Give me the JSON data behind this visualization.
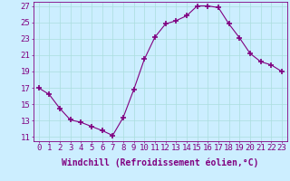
{
  "x": [
    0,
    1,
    2,
    3,
    4,
    5,
    6,
    7,
    8,
    9,
    10,
    11,
    12,
    13,
    14,
    15,
    16,
    17,
    18,
    19,
    20,
    21,
    22,
    23
  ],
  "y": [
    17,
    16.2,
    14.5,
    13.1,
    12.8,
    12.3,
    11.8,
    11.2,
    13.4,
    16.8,
    20.5,
    23.2,
    24.8,
    25.2,
    25.8,
    27.0,
    27.0,
    26.8,
    24.8,
    23.1,
    21.2,
    20.2,
    19.8,
    19.0
  ],
  "line_color": "#800080",
  "marker": "+",
  "marker_size": 5,
  "marker_lw": 1.2,
  "bg_color": "#cceeff",
  "grid_color": "#aadddd",
  "xlabel": "Windchill (Refroidissement éolien,°C)",
  "xlim": [
    -0.5,
    23.5
  ],
  "ylim": [
    10.5,
    27.5
  ],
  "yticks": [
    11,
    13,
    15,
    17,
    19,
    21,
    23,
    25,
    27
  ],
  "xticks": [
    0,
    1,
    2,
    3,
    4,
    5,
    6,
    7,
    8,
    9,
    10,
    11,
    12,
    13,
    14,
    15,
    16,
    17,
    18,
    19,
    20,
    21,
    22,
    23
  ],
  "spine_color": "#800080",
  "tick_color": "#800080",
  "label_color": "#800080",
  "tick_fontsize": 6.5,
  "xlabel_fontsize": 7.0
}
